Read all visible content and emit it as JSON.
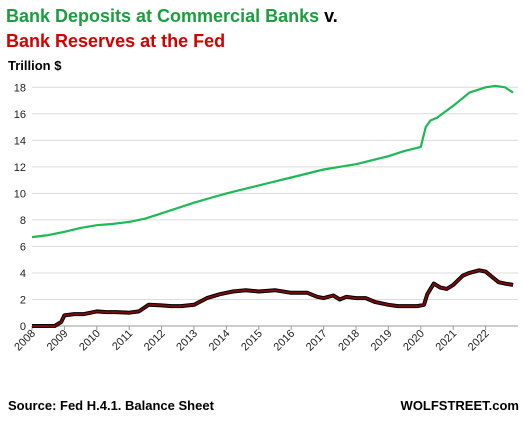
{
  "chart_data": {
    "type": "line",
    "title_line1": "Bank Deposits at Commercial Banks",
    "title_connector": " v.",
    "title_line2": "Bank Reserves at the Fed",
    "ylabel": "Trillion $",
    "ylim": [
      0,
      19
    ],
    "yticks": [
      "0",
      "2",
      "4",
      "6",
      "8",
      "10",
      "12",
      "14",
      "16",
      "18"
    ],
    "xlim": [
      2008,
      2023
    ],
    "xticks": [
      "2008",
      "2009",
      "2010",
      "2011",
      "2012",
      "2013",
      "2014",
      "2015",
      "2016",
      "2017",
      "2018",
      "2019",
      "2020",
      "2021",
      "2022"
    ],
    "grid": "horizontal",
    "source": "Source: Fed H.4.1. Balance Sheet",
    "brand": "WOLFSTREET.com",
    "colors": {
      "deposits": "#1db954",
      "reserves": "#7a0c0c",
      "reserves_outline": "#000000",
      "title_deposits": "#1a9e3f",
      "title_reserves": "#d40000"
    },
    "series": [
      {
        "key": "deposits",
        "x": [
          2008.0,
          2008.5,
          2009.0,
          2009.5,
          2010.0,
          2010.5,
          2011.0,
          2011.5,
          2012.0,
          2012.5,
          2013.0,
          2013.5,
          2014.0,
          2014.5,
          2015.0,
          2015.5,
          2016.0,
          2016.5,
          2017.0,
          2017.5,
          2018.0,
          2018.5,
          2019.0,
          2019.5,
          2020.0,
          2020.15,
          2020.3,
          2020.5,
          2021.0,
          2021.5,
          2022.0,
          2022.3,
          2022.6,
          2022.85
        ],
        "y": [
          6.7,
          6.85,
          7.1,
          7.4,
          7.6,
          7.7,
          7.85,
          8.1,
          8.5,
          8.9,
          9.3,
          9.65,
          10.0,
          10.3,
          10.6,
          10.9,
          11.2,
          11.5,
          11.8,
          12.0,
          12.2,
          12.5,
          12.8,
          13.2,
          13.5,
          15.0,
          15.5,
          15.7,
          16.6,
          17.6,
          18.0,
          18.1,
          18.0,
          17.6
        ]
      },
      {
        "key": "reserves",
        "x": [
          2008.0,
          2008.7,
          2008.9,
          2009.0,
          2009.3,
          2009.6,
          2010.0,
          2010.3,
          2010.6,
          2011.0,
          2011.3,
          2011.6,
          2012.0,
          2012.3,
          2012.6,
          2013.0,
          2013.4,
          2013.8,
          2014.2,
          2014.6,
          2015.0,
          2015.5,
          2016.0,
          2016.5,
          2016.8,
          2017.0,
          2017.3,
          2017.5,
          2017.7,
          2018.0,
          2018.3,
          2018.6,
          2019.0,
          2019.3,
          2019.6,
          2019.9,
          2020.1,
          2020.2,
          2020.4,
          2020.6,
          2020.8,
          2021.0,
          2021.3,
          2021.5,
          2021.8,
          2022.0,
          2022.2,
          2022.4,
          2022.6,
          2022.85
        ],
        "y": [
          0.0,
          0.0,
          0.3,
          0.8,
          0.9,
          0.9,
          1.1,
          1.05,
          1.05,
          1.0,
          1.1,
          1.6,
          1.55,
          1.5,
          1.5,
          1.6,
          2.1,
          2.4,
          2.6,
          2.7,
          2.6,
          2.7,
          2.5,
          2.5,
          2.2,
          2.1,
          2.3,
          2.0,
          2.2,
          2.1,
          2.1,
          1.8,
          1.6,
          1.5,
          1.5,
          1.5,
          1.6,
          2.4,
          3.2,
          2.9,
          2.8,
          3.1,
          3.8,
          4.0,
          4.2,
          4.1,
          3.7,
          3.3,
          3.2,
          3.1
        ]
      }
    ]
  }
}
